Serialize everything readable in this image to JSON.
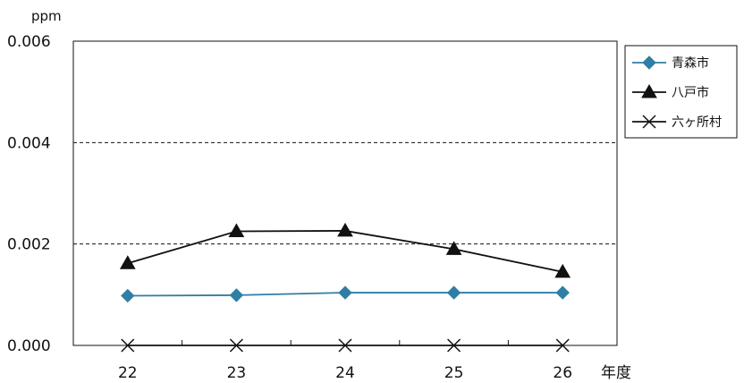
{
  "chart_data": {
    "type": "line",
    "title": "",
    "xlabel": "年度",
    "ylabel": "ppm",
    "categories": [
      "22",
      "23",
      "24",
      "25",
      "26"
    ],
    "ylim": [
      0,
      0.006
    ],
    "yticks": [
      "0.000",
      "0.002",
      "0.004",
      "0.006"
    ],
    "gridlines": [
      0.002,
      0.004
    ],
    "legend_position": "right",
    "series": [
      {
        "name": "青森市",
        "values": [
          0.00098,
          0.00099,
          0.00104,
          0.00104,
          0.00104
        ],
        "color": "#2f7ea6",
        "marker": "diamond"
      },
      {
        "name": "八戸市",
        "values": [
          0.00162,
          0.00225,
          0.00226,
          0.0019,
          0.00145
        ],
        "color": "#111111",
        "marker": "triangle"
      },
      {
        "name": "六ヶ所村",
        "values": [
          0.0,
          0.0,
          0.0,
          0.0,
          0.0
        ],
        "color": "#111111",
        "marker": "x"
      }
    ]
  }
}
